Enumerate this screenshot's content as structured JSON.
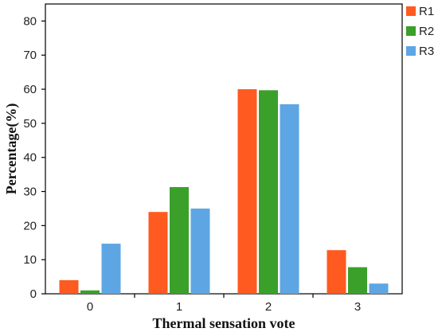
{
  "chart_data": {
    "type": "bar",
    "title": "",
    "xlabel": "Thermal sensation vote",
    "ylabel": "Percentage(%)",
    "categories": [
      "0",
      "1",
      "2",
      "3"
    ],
    "series": [
      {
        "name": "R1",
        "color": "#ff5a1f",
        "values": [
          4,
          24,
          60,
          12.8
        ]
      },
      {
        "name": "R2",
        "color": "#3aa02a",
        "values": [
          1,
          31.3,
          59.7,
          7.8
        ]
      },
      {
        "name": "R3",
        "color": "#5ea6e3",
        "values": [
          14.7,
          25,
          55.6,
          3
        ]
      }
    ],
    "ylim": [
      0,
      85
    ],
    "yticks": [
      0,
      10,
      20,
      30,
      40,
      50,
      60,
      70,
      80
    ],
    "grid": false,
    "legend_position": "top-right"
  }
}
